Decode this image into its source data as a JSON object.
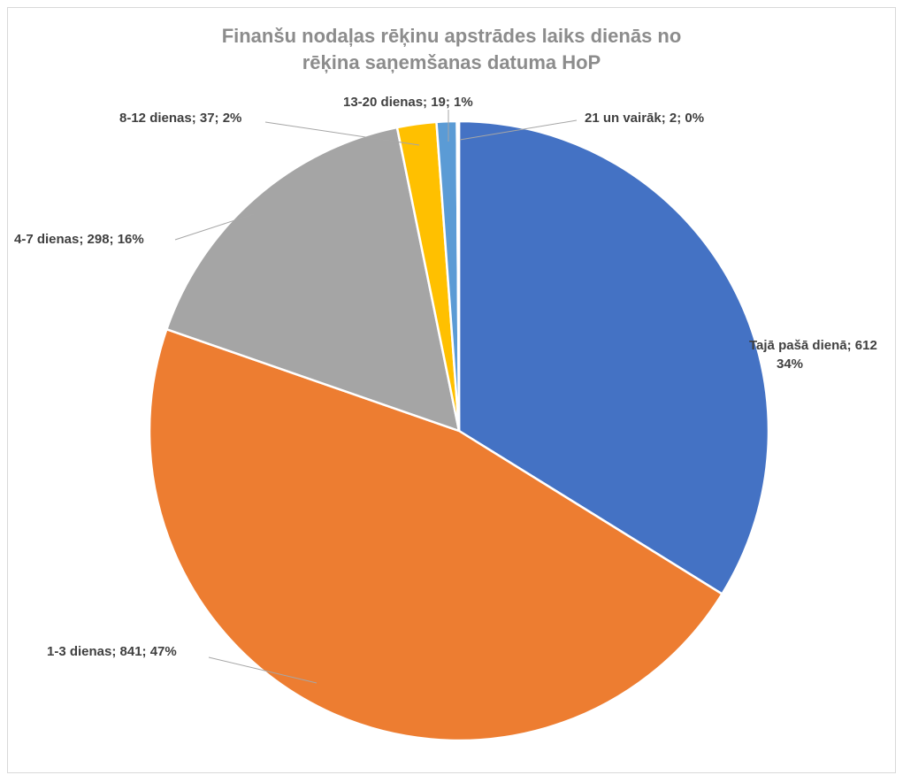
{
  "chart_data": {
    "type": "pie",
    "title_lines": [
      "Finanšu nodaļas rēķinu apstrādes laiks dienās no",
      "rēķina saņemšanas datuma HoP"
    ],
    "categories": [
      "Tajā pašā dienā",
      "1-3 dienas",
      "4-7 dienas",
      "8-12 dienas",
      "13-20 dienas",
      "21 un vairāk"
    ],
    "values": [
      612,
      841,
      298,
      37,
      19,
      2
    ],
    "colors": [
      "#4472C4",
      "#ED7D31",
      "#A5A5A5",
      "#FFC000",
      "#5B9BD5",
      "#70AD47"
    ],
    "data_labels": [
      [
        "Tajā pašā dienā; 612",
        "34%"
      ],
      [
        "1-3 dienas; 841; 47%"
      ],
      [
        "4-7 dienas; 298; 16%"
      ],
      [
        "8-12 dienas; 37; 2%"
      ],
      [
        "13-20 dienas; 19; 1%"
      ],
      [
        "21 un vairāk; 2; 0%"
      ]
    ],
    "start_angle": "12 o'clock",
    "direction": "clockwise",
    "legend": "none"
  }
}
